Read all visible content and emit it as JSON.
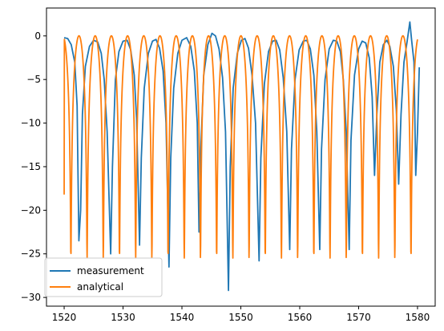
{
  "chart_data": {
    "type": "line",
    "title": "",
    "xlabel": "",
    "ylabel": "",
    "xlim": [
      1517,
      1583
    ],
    "ylim": [
      -31,
      3.2
    ],
    "xticks": [
      1520,
      1530,
      1540,
      1550,
      1560,
      1570,
      1580
    ],
    "yticks": [
      0,
      -5,
      -10,
      -15,
      -20,
      -25,
      -30
    ],
    "grid": false,
    "legend": {
      "placement": "lower-left",
      "entries": [
        "measurement",
        "analytical"
      ]
    },
    "series": [
      {
        "name": "measurement",
        "color": "#1f77b4",
        "points": [
          [
            1520.0,
            -0.2
          ],
          [
            1520.6,
            -0.3
          ],
          [
            1521.2,
            -1.0
          ],
          [
            1521.8,
            -3.0
          ],
          [
            1522.2,
            -8.0
          ],
          [
            1522.5,
            -23.5
          ],
          [
            1522.8,
            -20.0
          ],
          [
            1523.1,
            -9.0
          ],
          [
            1523.6,
            -3.5
          ],
          [
            1524.3,
            -1.2
          ],
          [
            1525.0,
            -0.5
          ],
          [
            1525.7,
            -0.7
          ],
          [
            1526.3,
            -2.0
          ],
          [
            1526.8,
            -5.0
          ],
          [
            1527.3,
            -11.0
          ],
          [
            1527.9,
            -25.0
          ],
          [
            1528.2,
            -15.0
          ],
          [
            1528.7,
            -5.0
          ],
          [
            1529.3,
            -1.8
          ],
          [
            1530.0,
            -0.6
          ],
          [
            1530.7,
            -0.5
          ],
          [
            1531.3,
            -1.6
          ],
          [
            1531.9,
            -4.5
          ],
          [
            1532.3,
            -9.5
          ],
          [
            1532.8,
            -24.0
          ],
          [
            1533.1,
            -14.0
          ],
          [
            1533.6,
            -6.0
          ],
          [
            1534.3,
            -2.0
          ],
          [
            1535.0,
            -0.6
          ],
          [
            1535.6,
            -0.4
          ],
          [
            1536.2,
            -1.4
          ],
          [
            1536.8,
            -4.0
          ],
          [
            1537.3,
            -10.0
          ],
          [
            1537.8,
            -26.5
          ],
          [
            1538.1,
            -14.0
          ],
          [
            1538.6,
            -6.0
          ],
          [
            1539.3,
            -2.0
          ],
          [
            1540.0,
            -0.5
          ],
          [
            1540.8,
            -0.2
          ],
          [
            1541.5,
            -1.2
          ],
          [
            1542.1,
            -4.0
          ],
          [
            1542.6,
            -10.0
          ],
          [
            1542.9,
            -22.5
          ],
          [
            1543.2,
            -13.0
          ],
          [
            1543.7,
            -4.5
          ],
          [
            1544.4,
            -1.0
          ],
          [
            1545.1,
            0.3
          ],
          [
            1545.7,
            0.0
          ],
          [
            1546.3,
            -1.5
          ],
          [
            1546.9,
            -4.8
          ],
          [
            1547.4,
            -11.0
          ],
          [
            1547.9,
            -29.2
          ],
          [
            1548.2,
            -15.0
          ],
          [
            1548.7,
            -6.0
          ],
          [
            1549.4,
            -2.0
          ],
          [
            1550.1,
            -0.5
          ],
          [
            1550.7,
            -0.3
          ],
          [
            1551.3,
            -1.4
          ],
          [
            1551.9,
            -4.5
          ],
          [
            1552.5,
            -10.0
          ],
          [
            1553.1,
            -25.8
          ],
          [
            1553.4,
            -14.0
          ],
          [
            1554.0,
            -5.5
          ],
          [
            1554.7,
            -1.8
          ],
          [
            1555.4,
            -0.6
          ],
          [
            1556.0,
            -0.5
          ],
          [
            1556.6,
            -1.6
          ],
          [
            1557.2,
            -4.8
          ],
          [
            1557.8,
            -11.0
          ],
          [
            1558.3,
            -24.5
          ],
          [
            1558.6,
            -13.0
          ],
          [
            1559.2,
            -5.0
          ],
          [
            1559.9,
            -1.6
          ],
          [
            1560.6,
            -0.6
          ],
          [
            1561.2,
            -0.5
          ],
          [
            1561.8,
            -1.5
          ],
          [
            1562.4,
            -4.5
          ],
          [
            1562.9,
            -11.0
          ],
          [
            1563.4,
            -24.5
          ],
          [
            1563.7,
            -13.0
          ],
          [
            1564.3,
            -5.0
          ],
          [
            1565.0,
            -1.5
          ],
          [
            1565.7,
            -0.5
          ],
          [
            1566.3,
            -0.6
          ],
          [
            1566.9,
            -1.8
          ],
          [
            1567.4,
            -5.0
          ],
          [
            1567.9,
            -11.0
          ],
          [
            1568.4,
            -24.5
          ],
          [
            1568.7,
            -12.0
          ],
          [
            1569.3,
            -4.5
          ],
          [
            1570.0,
            -1.5
          ],
          [
            1570.6,
            -0.6
          ],
          [
            1571.2,
            -0.8
          ],
          [
            1571.8,
            -2.5
          ],
          [
            1572.3,
            -7.0
          ],
          [
            1572.7,
            -16.0
          ],
          [
            1573.1,
            -9.0
          ],
          [
            1573.6,
            -3.0
          ],
          [
            1574.2,
            -1.0
          ],
          [
            1574.8,
            -0.5
          ],
          [
            1575.3,
            -1.2
          ],
          [
            1575.9,
            -3.5
          ],
          [
            1576.4,
            -8.5
          ],
          [
            1576.8,
            -17.0
          ],
          [
            1577.2,
            -9.0
          ],
          [
            1577.7,
            -3.0
          ],
          [
            1578.2,
            -0.8
          ],
          [
            1578.7,
            1.6
          ],
          [
            1579.0,
            -0.5
          ],
          [
            1579.4,
            -3.0
          ],
          [
            1579.7,
            -16.0
          ],
          [
            1580.0,
            -11.0
          ],
          [
            1580.3,
            -3.6
          ]
        ]
      },
      {
        "name": "analytical",
        "color": "#ff7f0e",
        "model": {
          "description": "periodic notch response",
          "x_start": 1520.0,
          "x_end": 1580.0,
          "period": 2.75,
          "first_notch": 1522.52,
          "floor": -25.5,
          "start_value": -18.2
        }
      }
    ]
  }
}
